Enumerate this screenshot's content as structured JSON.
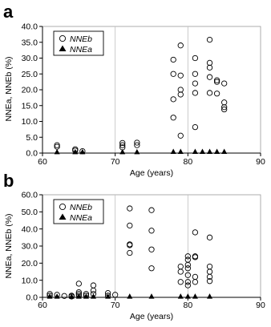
{
  "chart_data": [
    {
      "panel": "a",
      "type": "scatter",
      "xlabel": "Age (years)",
      "ylabel": "NNEa, NNEb (%)",
      "xlim": [
        60,
        90
      ],
      "ylim": [
        0,
        40
      ],
      "x_ticks": [
        "60",
        "70",
        "80",
        "90"
      ],
      "y_ticks": [
        "0.0",
        "5.0",
        "10.0",
        "15.0",
        "20.0",
        "25.0",
        "30.0",
        "35.0",
        "40.0"
      ],
      "grid": "vertical",
      "legend_position": "top-left",
      "series": [
        {
          "name": "NNEb",
          "marker": "open-circle",
          "points": [
            [
              62,
              2.5
            ],
            [
              62,
              2.0
            ],
            [
              64.5,
              1.2
            ],
            [
              64.5,
              0.8
            ],
            [
              65.5,
              0.6
            ],
            [
              71,
              3.2
            ],
            [
              71,
              2.5
            ],
            [
              71,
              1.8
            ],
            [
              73,
              3.3
            ],
            [
              73,
              2.5
            ],
            [
              78,
              29.5
            ],
            [
              78,
              25.0
            ],
            [
              78,
              17.0
            ],
            [
              78,
              11.2
            ],
            [
              79,
              34.0
            ],
            [
              79,
              24.5
            ],
            [
              79,
              20.0
            ],
            [
              79,
              18.5
            ],
            [
              79,
              5.5
            ],
            [
              81,
              30.0
            ],
            [
              81,
              25.0
            ],
            [
              81,
              22.0
            ],
            [
              81,
              19.0
            ],
            [
              81,
              8.2
            ],
            [
              83,
              35.8
            ],
            [
              83,
              28.5
            ],
            [
              83,
              27.0
            ],
            [
              83,
              24.0
            ],
            [
              83,
              19.0
            ],
            [
              84,
              23.0
            ],
            [
              84,
              22.5
            ],
            [
              84,
              18.8
            ],
            [
              85,
              22.0
            ],
            [
              85,
              16.0
            ],
            [
              85,
              14.5
            ],
            [
              85,
              13.8
            ]
          ]
        },
        {
          "name": "NNEa",
          "marker": "filled-triangle",
          "points": [
            [
              62,
              0.2
            ],
            [
              64.5,
              0.2
            ],
            [
              65.5,
              0.2
            ],
            [
              71,
              0.2
            ],
            [
              73,
              0.2
            ],
            [
              78,
              0.3
            ],
            [
              79,
              0.3
            ],
            [
              81,
              0.3
            ],
            [
              82,
              0.3
            ],
            [
              83,
              0.3
            ],
            [
              84,
              0.3
            ],
            [
              85,
              0.3
            ]
          ]
        }
      ]
    },
    {
      "panel": "b",
      "type": "scatter",
      "xlabel": "Age (years)",
      "ylabel": "NNEa, NNEb (%)",
      "xlim": [
        60,
        90
      ],
      "ylim": [
        0,
        60
      ],
      "x_ticks": [
        "60",
        "70",
        "80",
        "90"
      ],
      "y_ticks": [
        "0.0",
        "10.0",
        "20.0",
        "30.0",
        "40.0",
        "50.0",
        "60.0"
      ],
      "grid": "vertical",
      "legend_position": "top-left",
      "series": [
        {
          "name": "NNEb",
          "marker": "open-circle",
          "points": [
            [
              61,
              2.0
            ],
            [
              61,
              1.0
            ],
            [
              62,
              1.5
            ],
            [
              63,
              0.8
            ],
            [
              64,
              1.0
            ],
            [
              64,
              0.5
            ],
            [
              65,
              8.0
            ],
            [
              65,
              3.0
            ],
            [
              65,
              2.0
            ],
            [
              65,
              1.0
            ],
            [
              66,
              2.0
            ],
            [
              66,
              1.0
            ],
            [
              67,
              7.0
            ],
            [
              67,
              4.0
            ],
            [
              67,
              2.0
            ],
            [
              69,
              2.5
            ],
            [
              69,
              1.0
            ],
            [
              70,
              1.5
            ],
            [
              72,
              52.0
            ],
            [
              72,
              42.0
            ],
            [
              72,
              31.0
            ],
            [
              72,
              30.5
            ],
            [
              72,
              26.0
            ],
            [
              75,
              51.0
            ],
            [
              75,
              39.0
            ],
            [
              75,
              28.0
            ],
            [
              75,
              17.0
            ],
            [
              79,
              18.0
            ],
            [
              79,
              15.0
            ],
            [
              79,
              9.0
            ],
            [
              80,
              24.0
            ],
            [
              80,
              22.0
            ],
            [
              80,
              19.0
            ],
            [
              80,
              17.0
            ],
            [
              80,
              13.0
            ],
            [
              80,
              9.0
            ],
            [
              80,
              7.0
            ],
            [
              81,
              38.0
            ],
            [
              81,
              24.0
            ],
            [
              81,
              23.5
            ],
            [
              81,
              12.0
            ],
            [
              81,
              9.0
            ],
            [
              83,
              35.0
            ],
            [
              83,
              18.0
            ],
            [
              83,
              15.0
            ],
            [
              83,
              12.0
            ],
            [
              83,
              9.5
            ]
          ]
        },
        {
          "name": "NNEa",
          "marker": "filled-triangle",
          "points": [
            [
              61,
              0.3
            ],
            [
              62,
              0.3
            ],
            [
              64,
              0.3
            ],
            [
              65,
              0.3
            ],
            [
              66,
              0.3
            ],
            [
              67,
              0.3
            ],
            [
              69,
              0.3
            ],
            [
              72,
              0.3
            ],
            [
              75,
              0.3
            ],
            [
              79,
              0.3
            ],
            [
              80,
              0.3
            ],
            [
              81,
              0.3
            ],
            [
              83,
              0.3
            ]
          ]
        }
      ]
    }
  ]
}
